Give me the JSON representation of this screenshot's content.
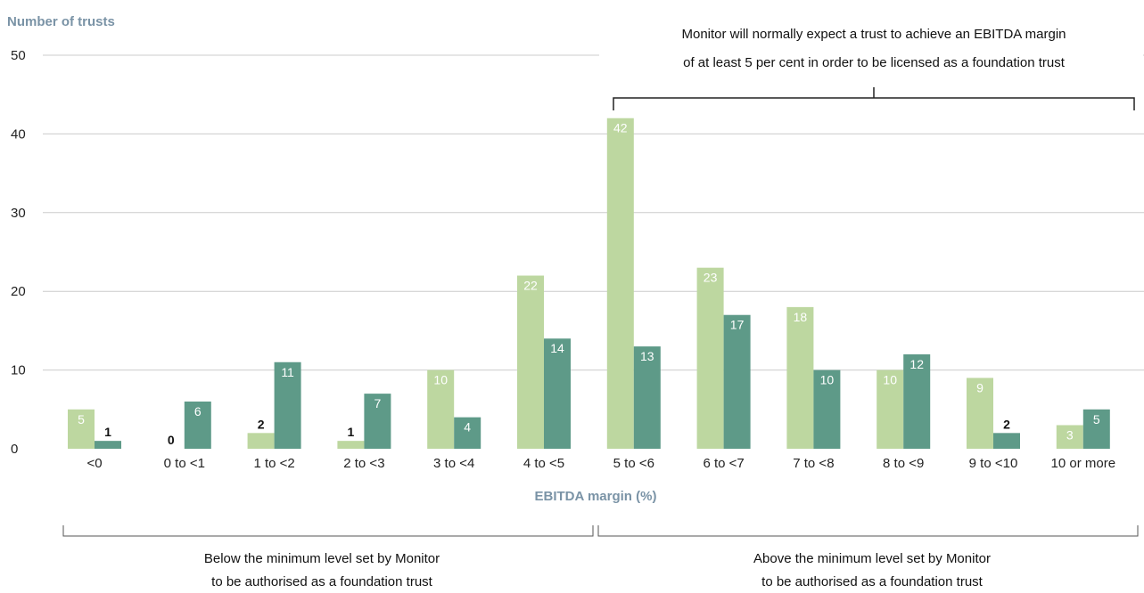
{
  "colors": {
    "series1": "#bdd7a0",
    "series2": "#5e9a88",
    "axis_title": "#7a93a6",
    "grid": "#cccccc",
    "label_inside": "#ffffff",
    "label_outside": "#111111",
    "bracket": "#555555"
  },
  "annotations": {
    "top_line1": "Monitor will normally expect a trust to achieve an EBITDA margin",
    "top_line2": "of at least 5 per cent in order to be licensed as a foundation trust",
    "below_line1": "Below the minimum level set by Monitor",
    "below_line2": "to be authorised as a foundation trust",
    "above_line1": "Above the minimum level set by Monitor",
    "above_line2": "to be authorised as a foundation trust"
  },
  "chart_data": {
    "type": "bar",
    "title": "",
    "xlabel": "EBITDA margin (%)",
    "ylabel": "Number of trusts",
    "ylim": [
      0,
      50
    ],
    "yticks": [
      0,
      10,
      20,
      30,
      40,
      50
    ],
    "grid": true,
    "legend": "none",
    "categories": [
      "<0",
      "0 to <1",
      "1 to <2",
      "2 to <3",
      "3 to <4",
      "4 to <5",
      "5 to <6",
      "6 to <7",
      "7 to <8",
      "8 to <9",
      "9 to <10",
      "10 or more"
    ],
    "series": [
      {
        "values": [
          5,
          0,
          2,
          1,
          10,
          22,
          42,
          23,
          18,
          10,
          9,
          3
        ]
      },
      {
        "values": [
          1,
          6,
          11,
          7,
          4,
          14,
          13,
          17,
          10,
          12,
          2,
          5
        ]
      }
    ]
  }
}
